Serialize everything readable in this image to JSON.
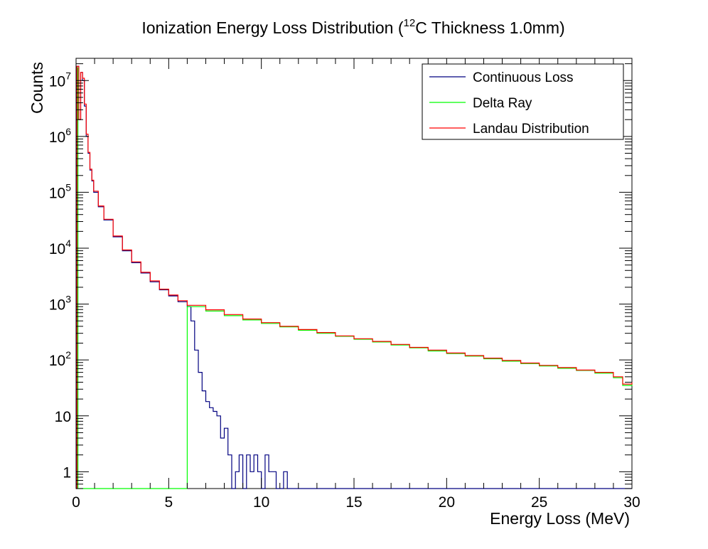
{
  "chart_data": {
    "type": "line",
    "title_main": "Ionization Energy Loss Distribution (",
    "title_sup": "12",
    "title_tail": "C Thickness 1.0mm)",
    "xlabel": "Energy Loss (MeV)",
    "ylabel": "Counts",
    "xlim": [
      0,
      30
    ],
    "ylim": [
      0.5,
      25000000
    ],
    "yscale": "log",
    "x_ticks": [
      0,
      5,
      10,
      15,
      20,
      25,
      30
    ],
    "x_tick_labels": [
      "0",
      "5",
      "10",
      "15",
      "20",
      "25",
      "30"
    ],
    "y_ticks": [
      1,
      10,
      100,
      1000,
      10000,
      100000,
      1000000,
      10000000
    ],
    "y_tick_labels": [
      {
        "base": "1",
        "exp": ""
      },
      {
        "base": "10",
        "exp": ""
      },
      {
        "base": "10",
        "exp": "2"
      },
      {
        "base": "10",
        "exp": "3"
      },
      {
        "base": "10",
        "exp": "4"
      },
      {
        "base": "10",
        "exp": "5"
      },
      {
        "base": "10",
        "exp": "6"
      },
      {
        "base": "10",
        "exp": "7"
      }
    ],
    "legend_position": "top-right",
    "series": [
      {
        "name": "Continuous Loss",
        "color": "#000080",
        "style": "step",
        "points": [
          [
            0.0,
            0.5
          ],
          [
            0.05,
            18000000
          ],
          [
            0.15,
            2000000
          ],
          [
            0.25,
            14000000
          ],
          [
            0.35,
            10000000
          ],
          [
            0.45,
            3500000
          ],
          [
            0.55,
            1000000
          ],
          [
            0.65,
            500000
          ],
          [
            0.75,
            250000
          ],
          [
            0.85,
            160000
          ],
          [
            0.95,
            100000
          ],
          [
            1.2,
            55000
          ],
          [
            1.5,
            32000
          ],
          [
            2.0,
            16000
          ],
          [
            2.5,
            9000
          ],
          [
            3.0,
            5500
          ],
          [
            3.5,
            3600
          ],
          [
            4.0,
            2500
          ],
          [
            4.5,
            1800
          ],
          [
            5.0,
            1400
          ],
          [
            5.5,
            1100
          ],
          [
            6.0,
            900
          ],
          [
            6.2,
            500
          ],
          [
            6.4,
            150
          ],
          [
            6.6,
            60
          ],
          [
            6.8,
            28
          ],
          [
            7.0,
            18
          ],
          [
            7.2,
            14
          ],
          [
            7.4,
            12
          ],
          [
            7.6,
            10
          ],
          [
            7.8,
            4
          ],
          [
            8.0,
            6
          ],
          [
            8.2,
            2
          ],
          [
            8.4,
            0.5
          ],
          [
            8.6,
            1
          ],
          [
            8.8,
            2
          ],
          [
            9.0,
            0.5
          ],
          [
            9.2,
            2
          ],
          [
            9.4,
            1
          ],
          [
            9.6,
            2
          ],
          [
            9.8,
            1
          ],
          [
            10.0,
            0.5
          ],
          [
            10.2,
            2
          ],
          [
            10.4,
            1
          ],
          [
            10.6,
            1
          ],
          [
            10.8,
            0.5
          ],
          [
            11.2,
            1
          ],
          [
            11.4,
            0.5
          ]
        ]
      },
      {
        "name": "Delta Ray",
        "color": "#00ff00",
        "style": "step",
        "points": [
          [
            0.0,
            17000000
          ],
          [
            0.1,
            0.5
          ],
          [
            6.0,
            0.5
          ],
          [
            6.0,
            900
          ],
          [
            7,
            750
          ],
          [
            8,
            620
          ],
          [
            9,
            520
          ],
          [
            10,
            450
          ],
          [
            11,
            390
          ],
          [
            12,
            340
          ],
          [
            13,
            300
          ],
          [
            14,
            265
          ],
          [
            15,
            235
          ],
          [
            16,
            210
          ],
          [
            17,
            185
          ],
          [
            18,
            165
          ],
          [
            19,
            145
          ],
          [
            20,
            130
          ],
          [
            21,
            117
          ],
          [
            22,
            105
          ],
          [
            23,
            95
          ],
          [
            24,
            86
          ],
          [
            25,
            78
          ],
          [
            26,
            71
          ],
          [
            27,
            65
          ],
          [
            28,
            58
          ],
          [
            29,
            48
          ],
          [
            29.5,
            35
          ],
          [
            30,
            38
          ]
        ]
      },
      {
        "name": "Landau Distribution",
        "color": "#ff0000",
        "style": "step",
        "points": [
          [
            0.0,
            0.5
          ],
          [
            0.05,
            18000000
          ],
          [
            0.15,
            2000000
          ],
          [
            0.25,
            14000000
          ],
          [
            0.35,
            11000000
          ],
          [
            0.45,
            3800000
          ],
          [
            0.55,
            1100000
          ],
          [
            0.65,
            520000
          ],
          [
            0.75,
            260000
          ],
          [
            0.85,
            165000
          ],
          [
            0.95,
            105000
          ],
          [
            1.2,
            57000
          ],
          [
            1.5,
            33000
          ],
          [
            2.0,
            16500
          ],
          [
            2.5,
            9300
          ],
          [
            3.0,
            5700
          ],
          [
            3.5,
            3700
          ],
          [
            4.0,
            2600
          ],
          [
            4.5,
            1850
          ],
          [
            5.0,
            1450
          ],
          [
            5.5,
            1150
          ],
          [
            6.0,
            950
          ],
          [
            7,
            790
          ],
          [
            8,
            650
          ],
          [
            9,
            540
          ],
          [
            10,
            465
          ],
          [
            11,
            400
          ],
          [
            12,
            350
          ],
          [
            13,
            310
          ],
          [
            14,
            270
          ],
          [
            15,
            240
          ],
          [
            16,
            215
          ],
          [
            17,
            190
          ],
          [
            18,
            168
          ],
          [
            19,
            150
          ],
          [
            20,
            133
          ],
          [
            21,
            120
          ],
          [
            22,
            108
          ],
          [
            23,
            98
          ],
          [
            24,
            88
          ],
          [
            25,
            80
          ],
          [
            26,
            73
          ],
          [
            27,
            66
          ],
          [
            28,
            60
          ],
          [
            29,
            50
          ],
          [
            29.5,
            37
          ],
          [
            30,
            40
          ]
        ]
      }
    ]
  }
}
